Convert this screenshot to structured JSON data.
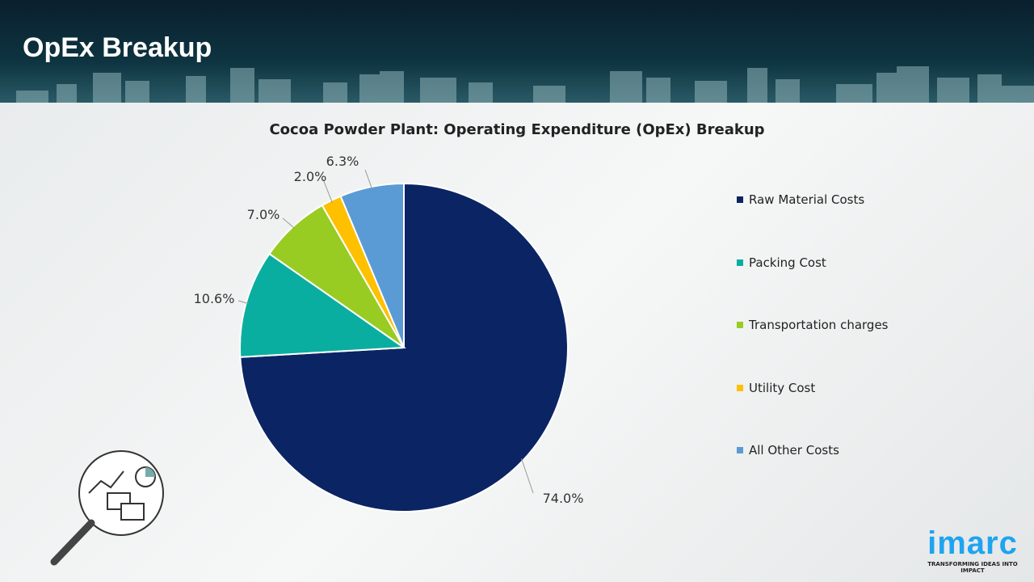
{
  "header": {
    "title": "OpEx Breakup"
  },
  "chart_data": {
    "type": "pie",
    "title": "Cocoa Powder Plant: Operating Expenditure (OpEx) Breakup",
    "categories": [
      "Raw Material Costs",
      "Packing Cost",
      "Transportation charges",
      "Utility Cost",
      "All Other Costs"
    ],
    "values": [
      74.0,
      10.6,
      7.0,
      2.0,
      6.3
    ],
    "labels": [
      "74.0%",
      "10.6%",
      "7.0%",
      "2.0%",
      "6.3%"
    ],
    "colors": [
      "#0b2463",
      "#0aaea0",
      "#99cc22",
      "#ffc000",
      "#5b9bd5"
    ],
    "start_angle": "top, clockwise",
    "legend": "right"
  },
  "logo": {
    "word": "imarc",
    "tagline": "TRANSFORMING IDEAS INTO IMPACT"
  }
}
